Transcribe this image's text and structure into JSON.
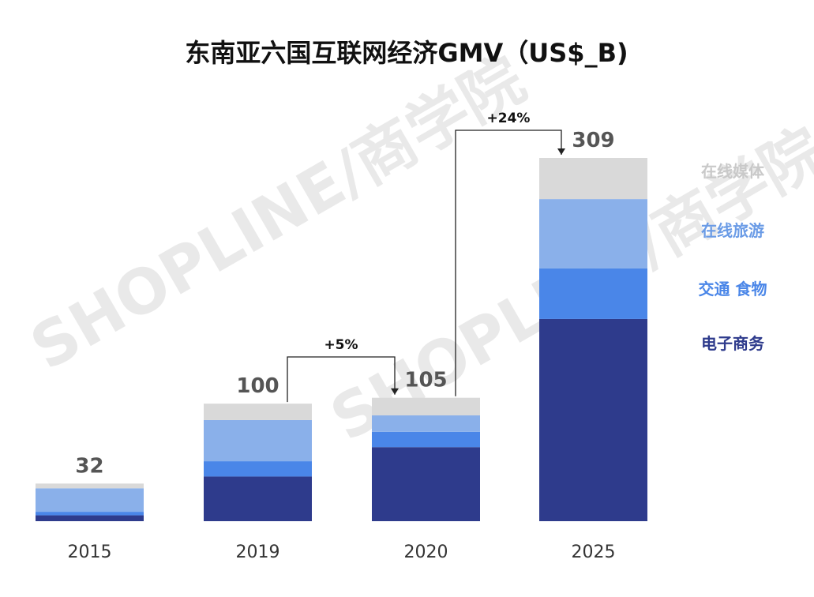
{
  "chart_data": {
    "type": "bar",
    "stacked": true,
    "title": "东南亚六国互联网经济GMV（US$_B)",
    "categories": [
      "2015",
      "2019",
      "2020",
      "2025"
    ],
    "totals": [
      "32",
      "100",
      "105",
      "309"
    ],
    "series": [
      {
        "name": "电子商务",
        "color": "#2e3b8c",
        "values": [
          5,
          38,
          63,
          172
        ]
      },
      {
        "name": "交通 食物",
        "color": "#4a86e8",
        "values": [
          3,
          13,
          13,
          43
        ]
      },
      {
        "name": "在线旅游",
        "color": "#8ab0ea",
        "values": [
          20,
          35,
          14,
          59
        ]
      },
      {
        "name": "在线媒体",
        "color": "#d9d9d9",
        "values": [
          4,
          14,
          15,
          35
        ]
      }
    ],
    "growth_annotations": [
      {
        "label": "+5%",
        "from": "2019",
        "to": "2020"
      },
      {
        "label": "+24%",
        "from": "2020",
        "to": "2025"
      }
    ],
    "legend_placement": "right",
    "grid": false
  },
  "watermark": {
    "text": "SHOPLINE/商学院"
  }
}
